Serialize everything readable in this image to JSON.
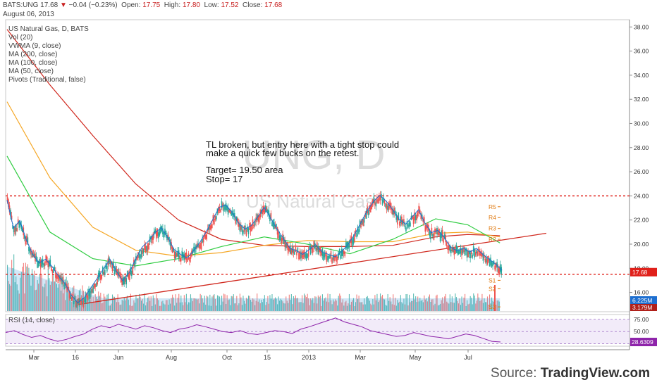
{
  "header": {
    "symbol": "BATS:UNG",
    "last": "17.68",
    "change": "−0.04 (−0.23%)",
    "open_label": "Open:",
    "open": "17.75",
    "high_label": "High:",
    "high": "17.80",
    "low_label": "Low:",
    "low": "17.52",
    "close_label": "Close:",
    "close": "17.68",
    "date": "August 06, 2013"
  },
  "indicators": [
    "US Natural Gas, D, BATS",
    "Vol (20)",
    "VWMA (9, close)",
    "MA (200, close)",
    "MA (100, close)",
    "MA (50, close)",
    "Pivots (Traditional, false)"
  ],
  "watermark": {
    "big": "UNG, D",
    "small": "US Natural Gas"
  },
  "annotation": {
    "line1": "TL broken, but entry here with a tight stop could",
    "line2": "make a quick few bucks on the retest.",
    "line3": "Target= 19.50 area",
    "line4": "Stop=      17"
  },
  "rsi_label": "RSI (14, close)",
  "source": {
    "prefix": "Source: ",
    "brand": "TradingView.com"
  },
  "colors": {
    "up": "#26a69a",
    "down": "#ef5350",
    "ma50": "#2ecc40",
    "ma100": "#f5a623",
    "ma200": "#d0281e",
    "vwma": "#1e6fd0",
    "rsi": "#8e24aa",
    "pivot": "#e07a10",
    "hline": "#e0201a"
  },
  "chart_data": [
    {
      "type": "candlestick",
      "title": "US Natural Gas, D, BATS",
      "x_ticks": [
        "Mar",
        "16",
        "Jun",
        "Aug",
        "Oct",
        "15",
        "2013",
        "Mar",
        "May",
        "Jul"
      ],
      "y_ticks": [
        16.0,
        18.0,
        20.0,
        22.0,
        24.0,
        26.0,
        28.0,
        30.0,
        32.0,
        34.0,
        36.0,
        38.0
      ],
      "ylim": [
        14.4,
        38.6
      ],
      "last_price_label": "17.68",
      "volume_labels": [
        "6.225M",
        "3.179M"
      ],
      "horizontal_lines": [
        24.0,
        17.5
      ],
      "pivots": [
        {
          "name": "R5",
          "value": 23.1
        },
        {
          "name": "R4",
          "value": 22.2
        },
        {
          "name": "R3",
          "value": 21.3
        },
        {
          "name": "R2",
          "value": 20.4
        },
        {
          "name": "S1",
          "value": 17.0
        },
        {
          "name": "S2",
          "value": 16.3
        },
        {
          "name": "S3",
          "value": 14.8
        }
      ],
      "price_path": [
        [
          0,
          23.5
        ],
        [
          6,
          21.2
        ],
        [
          12,
          21.8
        ],
        [
          18,
          20.2
        ],
        [
          24,
          19.0
        ],
        [
          30,
          18.3
        ],
        [
          36,
          18.6
        ],
        [
          42,
          18.0
        ],
        [
          48,
          17.2
        ],
        [
          54,
          16.6
        ],
        [
          60,
          15.6
        ],
        [
          66,
          15.0
        ],
        [
          72,
          15.4
        ],
        [
          78,
          16.2
        ],
        [
          84,
          17.0
        ],
        [
          90,
          17.8
        ],
        [
          96,
          18.6
        ],
        [
          102,
          17.6
        ],
        [
          108,
          16.8
        ],
        [
          114,
          17.5
        ],
        [
          120,
          18.6
        ],
        [
          126,
          19.6
        ],
        [
          132,
          20.1
        ],
        [
          138,
          20.8
        ],
        [
          144,
          21.2
        ],
        [
          150,
          20.4
        ],
        [
          156,
          19.4
        ],
        [
          162,
          19.0
        ],
        [
          168,
          18.7
        ],
        [
          174,
          19.3
        ],
        [
          180,
          20.0
        ],
        [
          186,
          20.9
        ],
        [
          192,
          21.9
        ],
        [
          198,
          22.9
        ],
        [
          204,
          23.1
        ],
        [
          210,
          22.5
        ],
        [
          216,
          21.6
        ],
        [
          222,
          21.1
        ],
        [
          228,
          21.4
        ],
        [
          234,
          22.1
        ],
        [
          240,
          22.9
        ],
        [
          246,
          22.0
        ],
        [
          252,
          21.1
        ],
        [
          258,
          20.3
        ],
        [
          264,
          19.5
        ],
        [
          270,
          19.3
        ],
        [
          276,
          19.0
        ],
        [
          282,
          19.4
        ],
        [
          288,
          19.8
        ],
        [
          294,
          19.2
        ],
        [
          300,
          19.0
        ],
        [
          306,
          18.8
        ],
        [
          312,
          19.2
        ],
        [
          318,
          19.8
        ],
        [
          324,
          20.6
        ],
        [
          330,
          21.6
        ],
        [
          336,
          22.6
        ],
        [
          342,
          23.4
        ],
        [
          348,
          23.9
        ],
        [
          354,
          23.4
        ],
        [
          360,
          22.7
        ],
        [
          366,
          21.9
        ],
        [
          372,
          21.5
        ],
        [
          378,
          22.1
        ],
        [
          384,
          22.7
        ],
        [
          390,
          21.6
        ],
        [
          396,
          20.8
        ],
        [
          402,
          21.0
        ],
        [
          408,
          20.4
        ],
        [
          414,
          19.6
        ],
        [
          420,
          19.3
        ],
        [
          426,
          19.5
        ],
        [
          432,
          19.2
        ],
        [
          438,
          19.5
        ],
        [
          444,
          19.0
        ],
        [
          450,
          18.6
        ],
        [
          456,
          18.2
        ],
        [
          462,
          17.68
        ]
      ],
      "ma50": [
        [
          0,
          27.3
        ],
        [
          40,
          21.0
        ],
        [
          80,
          18.8
        ],
        [
          120,
          18.2
        ],
        [
          160,
          18.8
        ],
        [
          200,
          19.8
        ],
        [
          240,
          20.6
        ],
        [
          280,
          20.0
        ],
        [
          320,
          19.2
        ],
        [
          360,
          20.4
        ],
        [
          400,
          22.1
        ],
        [
          430,
          21.6
        ],
        [
          460,
          20.1
        ]
      ],
      "ma100": [
        [
          0,
          31.8
        ],
        [
          40,
          25.5
        ],
        [
          80,
          21.4
        ],
        [
          120,
          19.5
        ],
        [
          160,
          19.0
        ],
        [
          200,
          19.3
        ],
        [
          240,
          19.9
        ],
        [
          280,
          20.3
        ],
        [
          320,
          20.2
        ],
        [
          360,
          20.2
        ],
        [
          400,
          20.9
        ],
        [
          430,
          21.0
        ],
        [
          460,
          20.6
        ]
      ],
      "ma200": [
        [
          0,
          37.8
        ],
        [
          40,
          33.2
        ],
        [
          80,
          29.0
        ],
        [
          120,
          25.0
        ],
        [
          160,
          22.0
        ],
        [
          200,
          20.4
        ],
        [
          240,
          19.9
        ],
        [
          280,
          19.8
        ],
        [
          320,
          19.8
        ],
        [
          360,
          19.9
        ],
        [
          400,
          20.6
        ],
        [
          430,
          20.8
        ],
        [
          460,
          20.7
        ]
      ],
      "trendline": [
        [
          70,
          15.0
        ],
        [
          470,
          20.2
        ]
      ]
    },
    {
      "type": "line",
      "title": "RSI (14, close)",
      "y_ticks": [
        50.0,
        75.0
      ],
      "ylim": [
        20,
        85
      ],
      "last_value_label": "28.6309",
      "values": [
        48,
        52,
        44,
        38,
        42,
        35,
        30,
        34,
        40,
        45,
        55,
        62,
        58,
        65,
        60,
        55,
        62,
        58,
        52,
        48,
        55,
        58,
        64,
        60,
        55,
        50,
        48,
        52,
        46,
        44,
        48,
        52,
        50,
        46,
        55,
        60,
        66,
        72,
        78,
        70,
        65,
        60,
        52,
        48,
        44,
        40,
        42,
        48,
        44,
        40,
        38,
        35,
        40,
        45,
        42,
        36,
        30,
        28.6
      ]
    }
  ]
}
